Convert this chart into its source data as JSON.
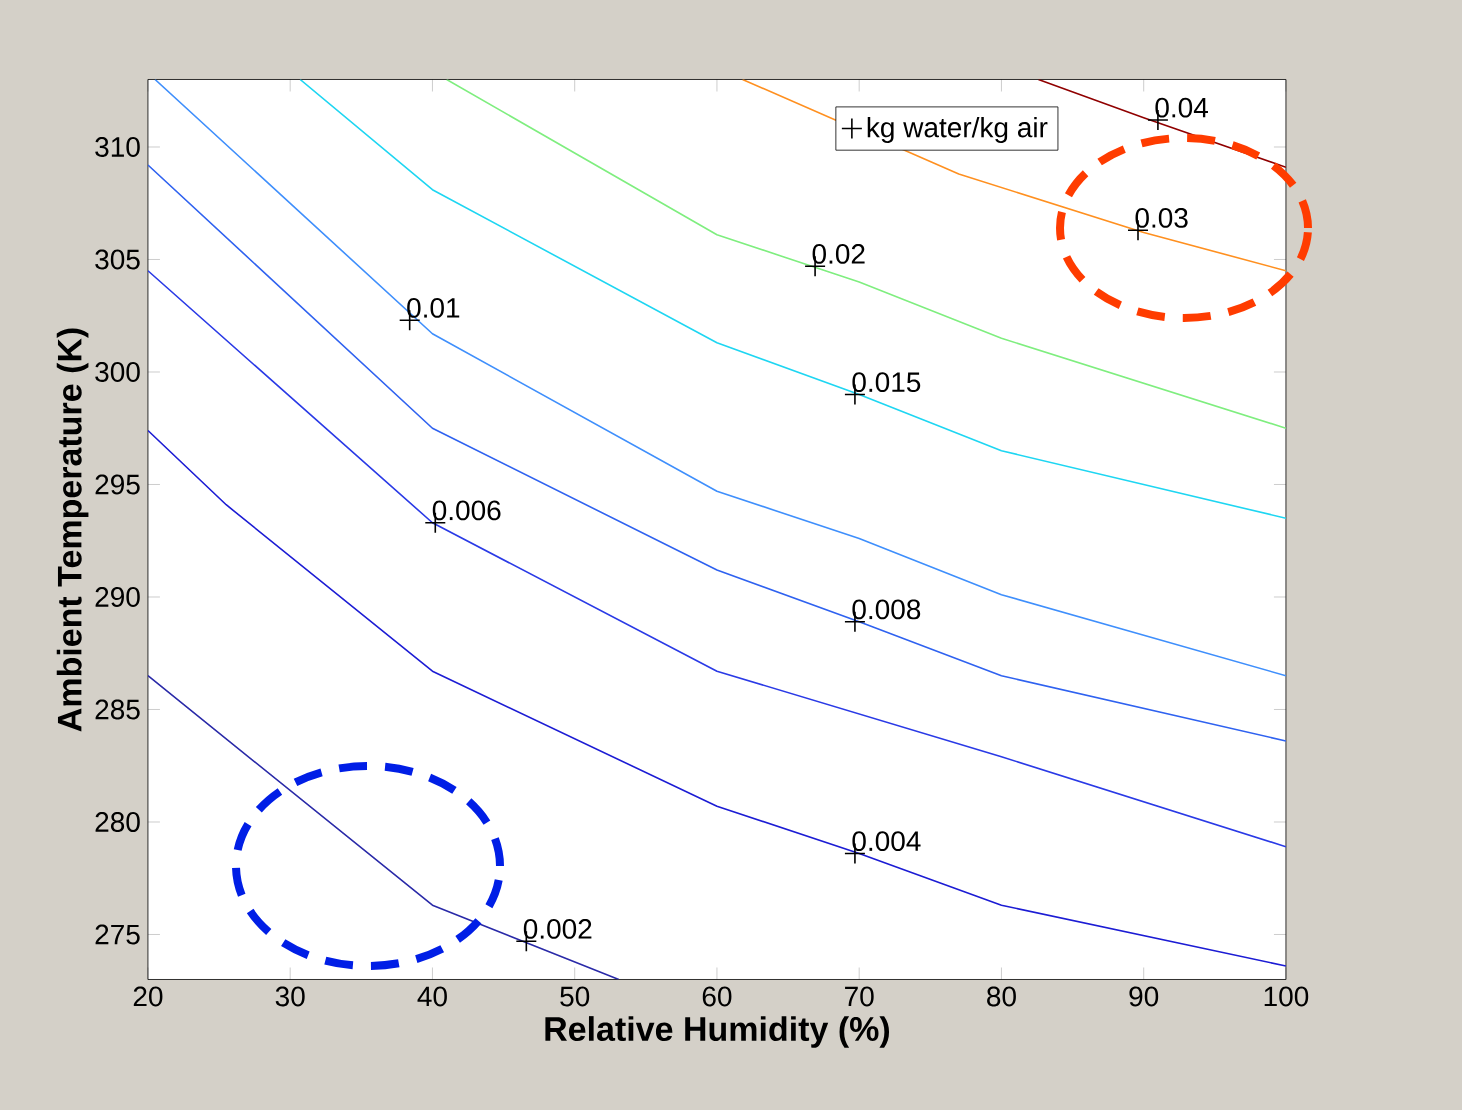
{
  "chart_data": {
    "type": "line",
    "xlabel": "Relative Humidity (%)",
    "ylabel": "Ambient Temperature (K)",
    "xlim": [
      20,
      100
    ],
    "ylim": [
      273,
      313
    ],
    "xticks": [
      20,
      30,
      40,
      50,
      60,
      70,
      80,
      90,
      100
    ],
    "yticks": [
      275,
      280,
      285,
      290,
      295,
      300,
      305,
      310
    ],
    "legend": "top right",
    "marker": "none",
    "line_style": "solid",
    "series": [
      {
        "color": "#2a2aa8",
        "x": [
          20,
          40,
          53.1
        ],
        "values": [
          286.5,
          276.3,
          273
        ]
      },
      {
        "color": "#1c1cd4",
        "x": [
          20,
          25.5,
          40,
          60,
          70,
          80,
          100
        ],
        "values": [
          297.4,
          294.1,
          286.7,
          280.7,
          278.6,
          276.3,
          273.6
        ]
      },
      {
        "color": "#2a3ae6",
        "x": [
          20,
          40,
          60,
          80,
          100
        ],
        "values": [
          304.5,
          293.3,
          286.7,
          282.9,
          278.9
        ]
      },
      {
        "color": "#2f62f0",
        "x": [
          20,
          40,
          60,
          70,
          80,
          100
        ],
        "values": [
          309.2,
          297.5,
          291.2,
          288.9,
          286.5,
          283.6
        ]
      },
      {
        "color": "#3f8ffc",
        "x": [
          20.5,
          40,
          60,
          70,
          80,
          100
        ],
        "values": [
          313,
          301.7,
          294.7,
          292.6,
          290.1,
          286.5
        ]
      },
      {
        "color": "#1ed6f2",
        "x": [
          30.7,
          40,
          60,
          70,
          80,
          100
        ],
        "values": [
          313,
          308.1,
          301.3,
          299.0,
          296.5,
          293.5
        ]
      },
      {
        "color": "#7fee7f",
        "x": [
          41,
          60,
          70,
          80,
          100
        ],
        "values": [
          313,
          306.1,
          304.0,
          301.5,
          297.5
        ]
      },
      {
        "color": "#ff9020",
        "x": [
          61.8,
          77,
          90,
          100
        ],
        "values": [
          313,
          308.8,
          306.2,
          304.5
        ]
      },
      {
        "color": "#900000",
        "x": [
          82.6,
          90,
          100
        ],
        "values": [
          313,
          311.3,
          309.1
        ]
      },
      {
        "name": "kg water/kg air",
        "type": "scatter",
        "marker": "cross",
        "color": "#000000",
        "x": [
          46.6,
          69.7,
          40.2,
          69.7,
          38.4,
          69.7,
          66.9,
          89.6,
          91.0
        ],
        "values": [
          274.7,
          278.6,
          293.3,
          288.9,
          302.3,
          299.0,
          304.7,
          306.3,
          311.2
        ]
      }
    ],
    "annotations": [
      {
        "text": "0.002",
        "x": 46.6,
        "y": 274.7
      },
      {
        "text": "0.004",
        "x": 69.7,
        "y": 278.6
      },
      {
        "text": "0.006",
        "x": 40.2,
        "y": 293.3
      },
      {
        "text": "0.008",
        "x": 69.7,
        "y": 288.9
      },
      {
        "text": "0.01",
        "x": 38.4,
        "y": 302.3
      },
      {
        "text": "0.015",
        "x": 69.7,
        "y": 299.0
      },
      {
        "text": "0.02",
        "x": 66.9,
        "y": 304.7
      },
      {
        "text": "0.03",
        "x": 89.6,
        "y": 306.3
      },
      {
        "text": "0.04",
        "x": 91.0,
        "y": 311.2
      }
    ]
  }
}
